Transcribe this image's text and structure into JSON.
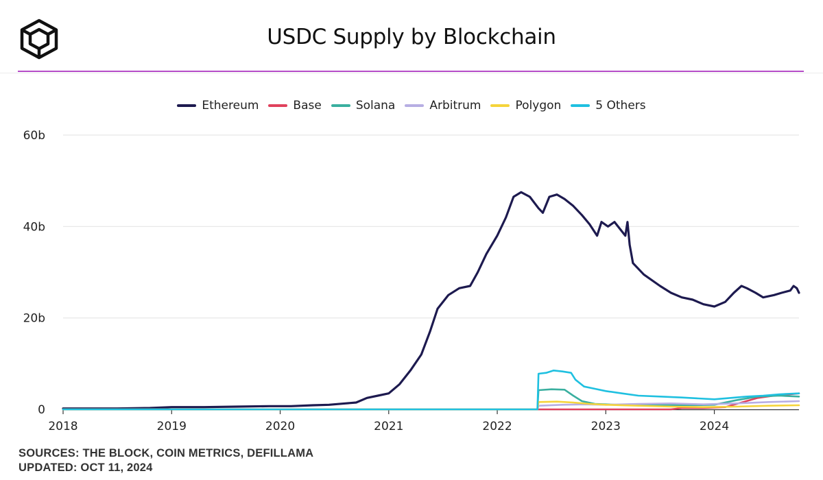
{
  "header": {
    "title": "USDC Supply by Blockchain",
    "logo_icon": "the-block-cube-logo"
  },
  "colors": {
    "accent_divider": "#b54bc8",
    "grid": "#e6e6e6",
    "axis": "#333333"
  },
  "footer": {
    "sources": "SOURCES: THE BLOCK, COIN METRICS, DEFILLAMA",
    "updated": "UPDATED: OCT 11, 2024"
  },
  "chart_data": {
    "type": "line",
    "title": "USDC Supply by Blockchain",
    "xlabel": "",
    "ylabel": "",
    "xlim": [
      2018.0,
      2024.78
    ],
    "ylim": [
      0,
      60
    ],
    "y_ticks": [
      {
        "value": 0,
        "label": "0"
      },
      {
        "value": 20,
        "label": "20b"
      },
      {
        "value": 40,
        "label": "40b"
      },
      {
        "value": 60,
        "label": "60b"
      }
    ],
    "x_ticks": [
      {
        "value": 2018,
        "label": "2018"
      },
      {
        "value": 2019,
        "label": "2019"
      },
      {
        "value": 2020,
        "label": "2020"
      },
      {
        "value": 2021,
        "label": "2021"
      },
      {
        "value": 2022,
        "label": "2022"
      },
      {
        "value": 2023,
        "label": "2023"
      },
      {
        "value": 2024,
        "label": "2024"
      }
    ],
    "grid": true,
    "legend_position": "top-center",
    "units": "billions USD",
    "series": [
      {
        "name": "Ethereum",
        "color": "#1d1a4f",
        "points": [
          [
            2018.0,
            0.2
          ],
          [
            2018.5,
            0.2
          ],
          [
            2018.8,
            0.3
          ],
          [
            2019.0,
            0.5
          ],
          [
            2019.3,
            0.5
          ],
          [
            2019.6,
            0.6
          ],
          [
            2019.9,
            0.7
          ],
          [
            2020.1,
            0.7
          ],
          [
            2020.3,
            0.9
          ],
          [
            2020.45,
            1.0
          ],
          [
            2020.6,
            1.3
          ],
          [
            2020.7,
            1.5
          ],
          [
            2020.8,
            2.5
          ],
          [
            2020.9,
            3.0
          ],
          [
            2021.0,
            3.5
          ],
          [
            2021.1,
            5.5
          ],
          [
            2021.2,
            8.5
          ],
          [
            2021.3,
            12.0
          ],
          [
            2021.38,
            17.0
          ],
          [
            2021.45,
            22.0
          ],
          [
            2021.55,
            25.0
          ],
          [
            2021.65,
            26.5
          ],
          [
            2021.75,
            27.0
          ],
          [
            2021.82,
            30.0
          ],
          [
            2021.9,
            34.0
          ],
          [
            2022.0,
            38.0
          ],
          [
            2022.08,
            42.0
          ],
          [
            2022.15,
            46.5
          ],
          [
            2022.22,
            47.5
          ],
          [
            2022.3,
            46.5
          ],
          [
            2022.38,
            44.0
          ],
          [
            2022.42,
            43.0
          ],
          [
            2022.48,
            46.5
          ],
          [
            2022.55,
            47.0
          ],
          [
            2022.62,
            46.0
          ],
          [
            2022.7,
            44.5
          ],
          [
            2022.78,
            42.5
          ],
          [
            2022.85,
            40.5
          ],
          [
            2022.92,
            38.0
          ],
          [
            2022.96,
            41.0
          ],
          [
            2023.02,
            40.0
          ],
          [
            2023.08,
            41.0
          ],
          [
            2023.13,
            39.5
          ],
          [
            2023.18,
            38.0
          ],
          [
            2023.2,
            41.0
          ],
          [
            2023.22,
            36.0
          ],
          [
            2023.25,
            32.0
          ],
          [
            2023.35,
            29.5
          ],
          [
            2023.5,
            27.0
          ],
          [
            2023.6,
            25.5
          ],
          [
            2023.7,
            24.5
          ],
          [
            2023.8,
            24.0
          ],
          [
            2023.9,
            23.0
          ],
          [
            2024.0,
            22.5
          ],
          [
            2024.1,
            23.5
          ],
          [
            2024.18,
            25.5
          ],
          [
            2024.25,
            27.0
          ],
          [
            2024.3,
            26.5
          ],
          [
            2024.38,
            25.5
          ],
          [
            2024.45,
            24.5
          ],
          [
            2024.55,
            25.0
          ],
          [
            2024.62,
            25.5
          ],
          [
            2024.7,
            26.0
          ],
          [
            2024.73,
            27.0
          ],
          [
            2024.76,
            26.5
          ],
          [
            2024.78,
            25.5
          ]
        ]
      },
      {
        "name": "Base",
        "color": "#e0415c",
        "points": [
          [
            2018.0,
            0
          ],
          [
            2023.6,
            0
          ],
          [
            2023.7,
            0.3
          ],
          [
            2023.9,
            0.3
          ],
          [
            2024.1,
            0.5
          ],
          [
            2024.25,
            1.5
          ],
          [
            2024.4,
            2.5
          ],
          [
            2024.55,
            3.0
          ],
          [
            2024.65,
            3.2
          ],
          [
            2024.78,
            3.5
          ]
        ]
      },
      {
        "name": "Solana",
        "color": "#3aaf9f",
        "points": [
          [
            2018.0,
            0
          ],
          [
            2022.37,
            0
          ],
          [
            2022.38,
            4.2
          ],
          [
            2022.5,
            4.4
          ],
          [
            2022.62,
            4.3
          ],
          [
            2022.7,
            3.0
          ],
          [
            2022.78,
            1.8
          ],
          [
            2022.9,
            1.2
          ],
          [
            2023.1,
            1.0
          ],
          [
            2023.4,
            1.0
          ],
          [
            2023.8,
            0.9
          ],
          [
            2024.0,
            1.0
          ],
          [
            2024.2,
            2.0
          ],
          [
            2024.4,
            2.8
          ],
          [
            2024.6,
            3.0
          ],
          [
            2024.78,
            2.8
          ]
        ]
      },
      {
        "name": "Arbitrum",
        "color": "#b7aee3",
        "points": [
          [
            2018.0,
            0
          ],
          [
            2022.37,
            0
          ],
          [
            2022.38,
            0.8
          ],
          [
            2022.6,
            1.0
          ],
          [
            2022.8,
            1.1
          ],
          [
            2023.0,
            1.0
          ],
          [
            2023.3,
            1.2
          ],
          [
            2023.6,
            1.3
          ],
          [
            2023.9,
            1.1
          ],
          [
            2024.2,
            1.3
          ],
          [
            2024.5,
            1.6
          ],
          [
            2024.78,
            1.8
          ]
        ]
      },
      {
        "name": "Polygon",
        "color": "#f5d43b",
        "points": [
          [
            2018.0,
            0
          ],
          [
            2022.37,
            0
          ],
          [
            2022.38,
            1.6
          ],
          [
            2022.55,
            1.7
          ],
          [
            2022.7,
            1.5
          ],
          [
            2022.85,
            1.2
          ],
          [
            2023.0,
            1.0
          ],
          [
            2023.3,
            0.8
          ],
          [
            2023.6,
            0.6
          ],
          [
            2023.9,
            0.5
          ],
          [
            2024.2,
            0.6
          ],
          [
            2024.5,
            0.8
          ],
          [
            2024.78,
            0.9
          ]
        ]
      },
      {
        "name": "5 Others",
        "color": "#1fc0e0",
        "points": [
          [
            2018.0,
            0
          ],
          [
            2022.37,
            0
          ],
          [
            2022.38,
            7.8
          ],
          [
            2022.45,
            8.0
          ],
          [
            2022.52,
            8.5
          ],
          [
            2022.6,
            8.3
          ],
          [
            2022.68,
            8.0
          ],
          [
            2022.72,
            6.5
          ],
          [
            2022.8,
            5.0
          ],
          [
            2022.9,
            4.5
          ],
          [
            2023.0,
            4.0
          ],
          [
            2023.15,
            3.5
          ],
          [
            2023.3,
            3.0
          ],
          [
            2023.5,
            2.8
          ],
          [
            2023.7,
            2.6
          ],
          [
            2023.85,
            2.4
          ],
          [
            2024.0,
            2.2
          ],
          [
            2024.15,
            2.5
          ],
          [
            2024.3,
            2.8
          ],
          [
            2024.45,
            3.0
          ],
          [
            2024.6,
            3.3
          ],
          [
            2024.78,
            3.5
          ]
        ]
      }
    ]
  }
}
